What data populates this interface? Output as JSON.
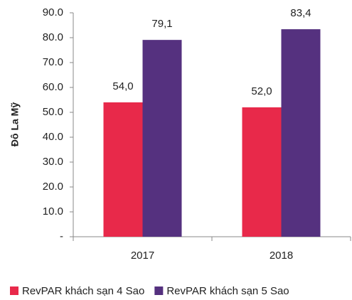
{
  "chart_data": {
    "type": "bar",
    "y_label": "Đô La Mỹ",
    "categories": [
      "2017",
      "2018"
    ],
    "series": [
      {
        "name": "RevPAR khách sạn 4 Sao",
        "color": "#e8294a",
        "values": [
          54.0,
          52.0
        ],
        "value_labels": [
          "54,0",
          "52,0"
        ]
      },
      {
        "name": "RevPAR khách sạn 5 Sao",
        "color": "#55317f",
        "values": [
          79.1,
          83.4
        ],
        "value_labels": [
          "79,1",
          "83,4"
        ]
      }
    ],
    "ylim": [
      0,
      90
    ],
    "yticks": [
      {
        "value": 0,
        "label": "-"
      },
      {
        "value": 10,
        "label": "10.0"
      },
      {
        "value": 20,
        "label": "20.0"
      },
      {
        "value": 30,
        "label": "30.0"
      },
      {
        "value": 40,
        "label": "40.0"
      },
      {
        "value": 50,
        "label": "50.0"
      },
      {
        "value": 60,
        "label": "60.0"
      },
      {
        "value": 70,
        "label": "70.0"
      },
      {
        "value": 80,
        "label": "80.0"
      },
      {
        "value": 90,
        "label": "90.0"
      }
    ],
    "grid": false,
    "legend": "bottom"
  }
}
